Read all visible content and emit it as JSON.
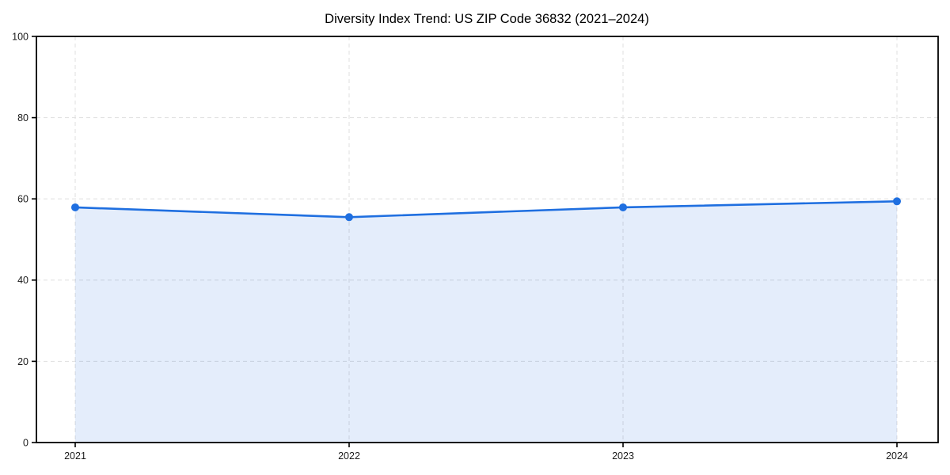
{
  "chart_data": {
    "type": "line",
    "title": "Diversity Index Trend: US ZIP Code 36832 (2021–2024)",
    "x": [
      "2021",
      "2022",
      "2023",
      "2024"
    ],
    "series": [
      {
        "name": "Diversity Index",
        "values": [
          57.9,
          55.5,
          57.9,
          59.4
        ]
      }
    ],
    "xlabel": "",
    "ylabel": "",
    "ylim": [
      0,
      100
    ],
    "yticks": [
      0,
      20,
      40,
      60,
      80,
      100
    ],
    "grid": "dashed",
    "legend_position": "none",
    "area_fill": true,
    "marker": "circle",
    "colors": {
      "line": "#1f6fe0",
      "area_fill": "rgba(31,111,224,0.12)",
      "grid": "#e2e2e2",
      "axis": "#000000",
      "tick_label": "#1a1a1a",
      "title": "#000000",
      "background": "#ffffff"
    }
  }
}
